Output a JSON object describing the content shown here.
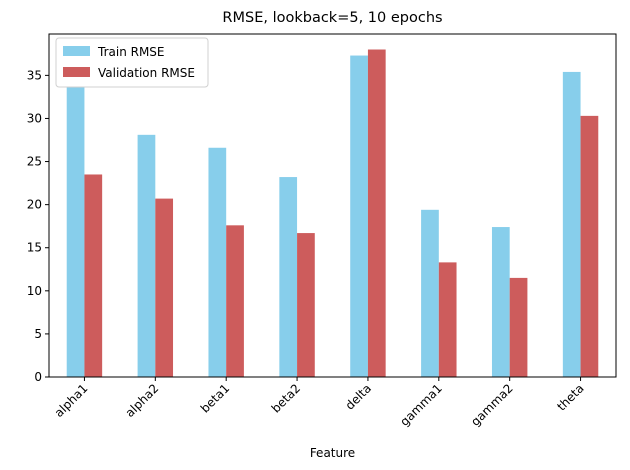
{
  "chart_data": {
    "type": "bar",
    "title": "RMSE, lookback=5, 10 epochs",
    "xlabel": "Feature",
    "ylabel": "",
    "categories": [
      "alpha1",
      "alpha2",
      "beta1",
      "beta2",
      "delta",
      "gamma1",
      "gamma2",
      "theta"
    ],
    "series": [
      {
        "name": "Train RMSE",
        "color": "#87ceeb",
        "values": [
          33.7,
          28.1,
          26.6,
          23.2,
          37.3,
          19.4,
          17.4,
          35.4
        ]
      },
      {
        "name": "Validation RMSE",
        "color": "#cd5c5c",
        "values": [
          23.5,
          20.7,
          17.6,
          16.7,
          38.0,
          13.3,
          11.5,
          30.3
        ]
      }
    ],
    "ylim": [
      0,
      39.8
    ],
    "yticks": [
      0,
      5,
      10,
      15,
      20,
      25,
      30,
      35
    ],
    "grid": false,
    "legend_position": "top-left"
  }
}
